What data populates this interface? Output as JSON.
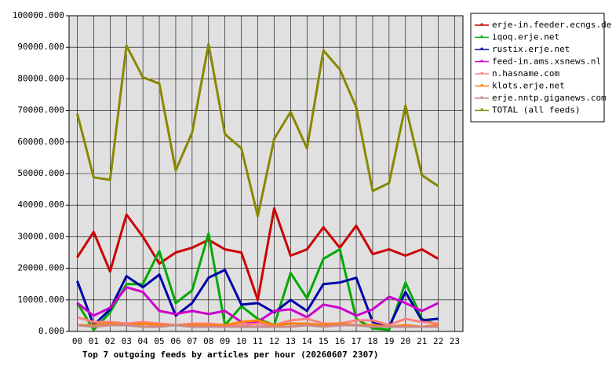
{
  "chart_data": {
    "type": "line",
    "title": "Top 7 outgoing feeds by articles per hour (20260607 2307)",
    "categories": [
      "00",
      "01",
      "02",
      "03",
      "04",
      "05",
      "06",
      "07",
      "08",
      "09",
      "10",
      "11",
      "12",
      "13",
      "14",
      "15",
      "16",
      "17",
      "18",
      "19",
      "20",
      "21",
      "22",
      "23"
    ],
    "ylim": [
      0,
      100000
    ],
    "yticks": [
      {
        "value": 0,
        "label": "0.000"
      },
      {
        "value": 10000,
        "label": "10000.000"
      },
      {
        "value": 20000,
        "label": "20000.000"
      },
      {
        "value": 30000,
        "label": "30000.000"
      },
      {
        "value": 40000,
        "label": "40000.000"
      },
      {
        "value": 50000,
        "label": "50000.000"
      },
      {
        "value": 60000,
        "label": "60000.000"
      },
      {
        "value": 70000,
        "label": "70000.000"
      },
      {
        "value": 80000,
        "label": "80000.000"
      },
      {
        "value": 90000,
        "label": "90000.000"
      },
      {
        "value": 100000,
        "label": "100000.000"
      }
    ],
    "grid": true,
    "legend": "right",
    "series": [
      {
        "name": "erje-in.feeder.ecngs.de",
        "color": "#cc0000",
        "values": [
          23500,
          31500,
          19000,
          37000,
          30000,
          21500,
          25000,
          26500,
          29000,
          26000,
          25000,
          10000,
          39000,
          24000,
          26000,
          33000,
          26500,
          33500,
          24500,
          26000,
          24000,
          26000,
          23000,
          null
        ]
      },
      {
        "name": "iqoq.erje.net",
        "color": "#00aa00",
        "values": [
          9000,
          500,
          6000,
          15000,
          15000,
          25500,
          9000,
          13000,
          31000,
          2000,
          8000,
          4000,
          2000,
          18500,
          10500,
          23000,
          26000,
          4000,
          1000,
          500,
          15500,
          4000,
          2000,
          null
        ]
      },
      {
        "name": "rustix.erje.net",
        "color": "#0000aa",
        "values": [
          16000,
          2000,
          7000,
          17500,
          14000,
          18000,
          5000,
          9000,
          17000,
          19500,
          8500,
          9000,
          6000,
          10000,
          6500,
          15000,
          15500,
          17000,
          3000,
          1500,
          12500,
          3500,
          4000,
          null
        ]
      },
      {
        "name": "feed-in.ams.xsnews.nl",
        "color": "#cc00cc",
        "values": [
          9000,
          5000,
          7500,
          14000,
          12500,
          6500,
          5500,
          6500,
          5500,
          6500,
          3000,
          3000,
          6500,
          7000,
          4500,
          8500,
          7500,
          5000,
          7000,
          11000,
          9000,
          6500,
          9000,
          null
        ]
      },
      {
        "name": "n.hasname.com",
        "color": "#ff8080",
        "values": [
          4500,
          3000,
          3000,
          2500,
          3000,
          2500,
          2000,
          2500,
          2500,
          2000,
          2000,
          2500,
          2000,
          3500,
          4000,
          2500,
          2500,
          3500,
          3500,
          2000,
          4000,
          3000,
          2500,
          null
        ]
      },
      {
        "name": "klots.erje.net",
        "color": "#ff8000",
        "values": [
          2000,
          2000,
          2500,
          2000,
          2500,
          2000,
          2000,
          2000,
          2000,
          2000,
          3000,
          3500,
          2000,
          2500,
          2500,
          2000,
          2500,
          2000,
          2000,
          1500,
          2000,
          1500,
          2000,
          null
        ]
      },
      {
        "name": "erje.nntp.giganews.com",
        "color": "#cc8888",
        "values": [
          2000,
          1500,
          2000,
          2000,
          1500,
          1500,
          2000,
          1500,
          1500,
          1500,
          1500,
          1500,
          1500,
          1500,
          2000,
          1500,
          2000,
          2000,
          1500,
          1500,
          1500,
          1500,
          1500,
          null
        ]
      },
      {
        "name": "TOTAL (all feeds)",
        "color": "#888800",
        "values": [
          69000,
          48800,
          48000,
          90500,
          80500,
          78500,
          51000,
          63000,
          91000,
          62500,
          58000,
          36500,
          61000,
          69500,
          58000,
          89000,
          83000,
          71000,
          44500,
          47000,
          71500,
          49500,
          46000,
          null
        ]
      }
    ]
  }
}
